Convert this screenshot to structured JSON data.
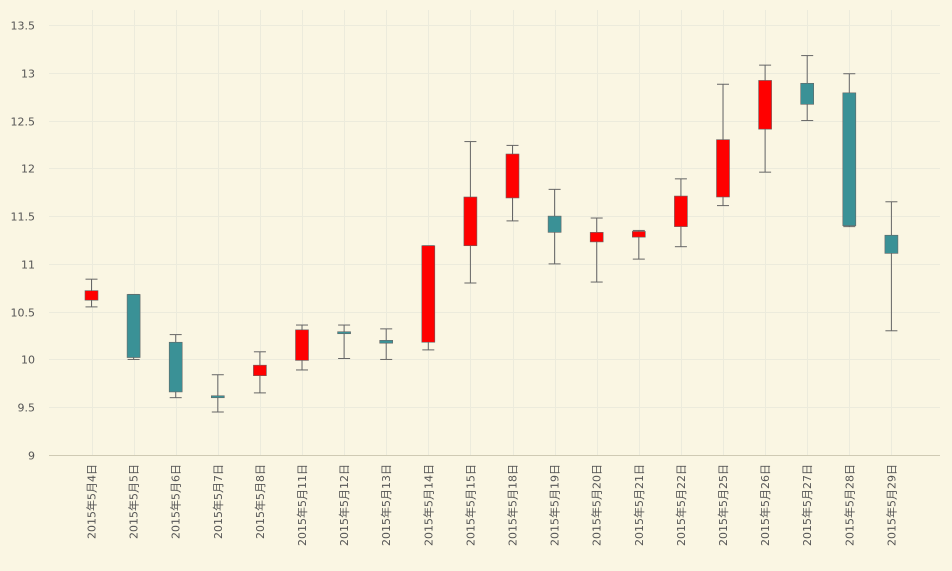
{
  "chart_data": {
    "type": "candlestick",
    "title": "",
    "xlabel": "",
    "ylabel": "",
    "ylim": [
      9,
      13.5
    ],
    "y_ticks": [
      9,
      9.5,
      10,
      10.5,
      11,
      11.5,
      12,
      12.5,
      13,
      13.5
    ],
    "y_tick_labels": [
      "9",
      "9.5",
      "10",
      "10.5",
      "11",
      "11.5",
      "12",
      "12.5",
      "13",
      "13.5"
    ],
    "grid": true,
    "colors": {
      "up": "#ff0000",
      "down": "#3a9196",
      "wick": "#666666",
      "background": "#faf6e3",
      "grid": "#ecebdc"
    },
    "categories": [
      "2015年5月4日",
      "2015年5月5日",
      "2015年5月6日",
      "2015年5月7日",
      "2015年5月8日",
      "2015年5月11日",
      "2015年5月12日",
      "2015年5月13日",
      "2015年5月14日",
      "2015年5月15日",
      "2015年5月18日",
      "2015年5月19日",
      "2015年5月20日",
      "2015年5月21日",
      "2015年5月22日",
      "2015年5月25日",
      "2015年5月26日",
      "2015年5月27日",
      "2015年5月28日",
      "2015年5月29日"
    ],
    "open": [
      10.62,
      10.68,
      10.18,
      9.62,
      9.83,
      9.99,
      10.29,
      10.2,
      10.18,
      11.19,
      11.69,
      11.5,
      11.23,
      11.28,
      11.39,
      11.7,
      12.41,
      12.89,
      12.79,
      11.3
    ],
    "high": [
      10.84,
      10.68,
      10.26,
      9.84,
      10.08,
      10.36,
      10.36,
      10.32,
      11.19,
      12.28,
      12.24,
      11.78,
      11.48,
      11.35,
      11.89,
      12.88,
      13.08,
      13.18,
      12.99,
      11.65
    ],
    "low": [
      10.55,
      10.0,
      9.6,
      9.45,
      9.65,
      9.89,
      10.01,
      10.0,
      10.1,
      10.8,
      11.45,
      11.0,
      10.81,
      11.05,
      11.18,
      11.61,
      11.96,
      12.5,
      11.39,
      10.3
    ],
    "close": [
      10.72,
      10.02,
      9.66,
      9.6,
      9.94,
      10.31,
      10.27,
      10.17,
      11.19,
      11.7,
      12.15,
      11.33,
      11.33,
      11.34,
      11.71,
      12.3,
      12.92,
      12.67,
      11.4,
      11.11
    ]
  }
}
